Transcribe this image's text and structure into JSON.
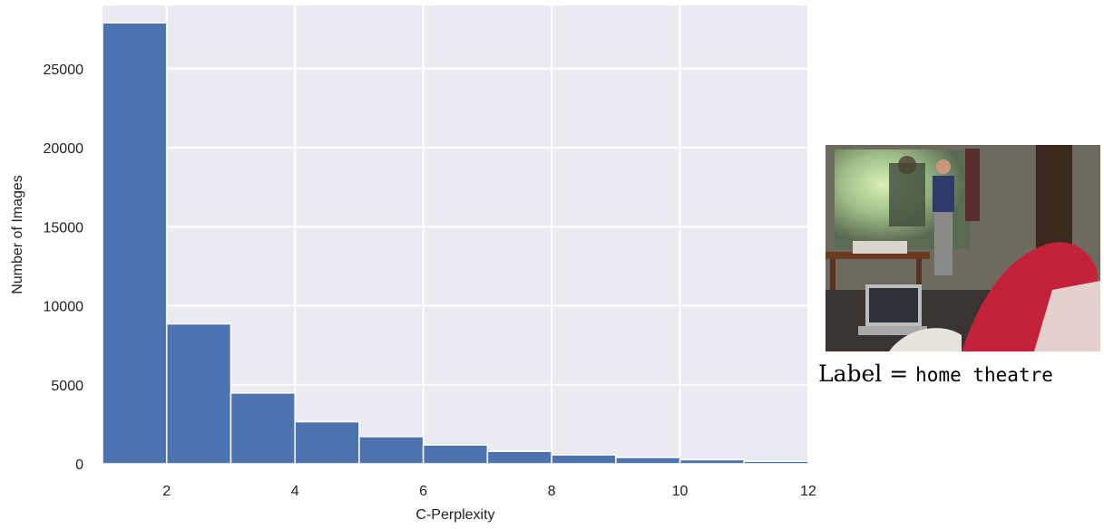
{
  "chart_data": {
    "type": "bar",
    "title": "",
    "xlabel": "C-Perplexity",
    "ylabel": "Number of Images",
    "bin_edges": [
      1,
      2,
      3,
      4,
      5,
      6,
      7,
      8,
      9,
      10,
      11,
      12
    ],
    "values": [
      27900,
      8850,
      4480,
      2660,
      1720,
      1190,
      790,
      560,
      400,
      260,
      160
    ],
    "xlim": [
      1,
      12
    ],
    "ylim": [
      0,
      29000
    ],
    "xticks": [
      2,
      4,
      6,
      8,
      10,
      12
    ],
    "yticks": [
      0,
      5000,
      10000,
      15000,
      20000,
      25000
    ],
    "grid": true,
    "bar_color": "#4c72b0",
    "background_color": "#eaeaf2"
  },
  "example": {
    "label_prefix": "Label = ",
    "label_value": "home theatre",
    "image_subject": "home theatre room with projector screen"
  }
}
